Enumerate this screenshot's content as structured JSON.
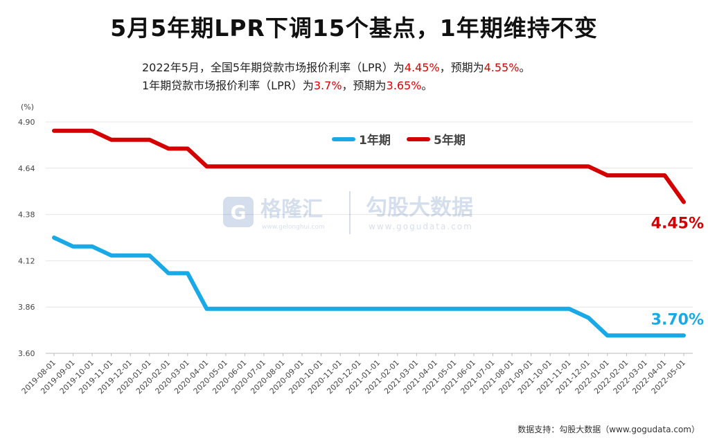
{
  "title": "5月5年期LPR下调15个基点，1年期维持不变",
  "subtitle_line1": {
    "p1": "2022年5月，全国5年期贷款市场报价利率（LPR）为",
    "v1": "4.45%",
    "p2": "，预期为",
    "v2": "4.55%",
    "p3": "。"
  },
  "subtitle_line2": {
    "p1": "1年期贷款市场报价利率（LPR）为",
    "v1": "3.7%",
    "p2": "，预期为",
    "v2": "3.65%",
    "p3": "。"
  },
  "watermark": {
    "brand1": "格隆汇",
    "url1": "www.gelonghui.com",
    "brand2": "勾股大数据",
    "url2": "www.gogudata.com"
  },
  "footer": "数据支持：勾股大数据（www.gogudata.com）",
  "colors": {
    "one_year": "#19a9e6",
    "five_year": "#d40000",
    "red_text": "#e00000"
  },
  "chart_data": {
    "type": "line",
    "ylabel": "(%)",
    "ylim": [
      3.6,
      4.9
    ],
    "yticks": [
      3.6,
      3.86,
      4.12,
      4.38,
      4.64,
      4.9
    ],
    "ytick_labels": [
      "3.60",
      "3.86",
      "4.12",
      "4.38",
      "4.64",
      "4.90"
    ],
    "x": [
      "2019-08-01",
      "2019-09-01",
      "2019-10-01",
      "2019-11-01",
      "2019-12-01",
      "2020-01-01",
      "2020-02-01",
      "2020-03-01",
      "2020-04-01",
      "2020-05-01",
      "2020-06-01",
      "2020-07-01",
      "2020-08-01",
      "2020-09-01",
      "2020-10-01",
      "2020-11-01",
      "2020-12-01",
      "2021-01-01",
      "2021-02-01",
      "2021-03-01",
      "2021-04-01",
      "2021-05-01",
      "2021-06-01",
      "2021-07-01",
      "2021-08-01",
      "2021-09-01",
      "2021-10-01",
      "2021-11-01",
      "2021-12-01",
      "2022-01-01",
      "2022-02-01",
      "2022-03-01",
      "2022-04-01",
      "2022-05-01"
    ],
    "series": [
      {
        "name": "1年期",
        "values": [
          4.25,
          4.2,
          4.2,
          4.15,
          4.15,
          4.15,
          4.05,
          4.05,
          3.85,
          3.85,
          3.85,
          3.85,
          3.85,
          3.85,
          3.85,
          3.85,
          3.85,
          3.85,
          3.85,
          3.85,
          3.85,
          3.85,
          3.85,
          3.85,
          3.85,
          3.85,
          3.85,
          3.85,
          3.8,
          3.7,
          3.7,
          3.7,
          3.7,
          3.7
        ],
        "end_label": "3.70%"
      },
      {
        "name": "5年期",
        "values": [
          4.85,
          4.85,
          4.85,
          4.8,
          4.8,
          4.8,
          4.75,
          4.75,
          4.65,
          4.65,
          4.65,
          4.65,
          4.65,
          4.65,
          4.65,
          4.65,
          4.65,
          4.65,
          4.65,
          4.65,
          4.65,
          4.65,
          4.65,
          4.65,
          4.65,
          4.65,
          4.65,
          4.65,
          4.65,
          4.6,
          4.6,
          4.6,
          4.6,
          4.45
        ],
        "end_label": "4.45%"
      }
    ],
    "grid": true,
    "legend": "top-center"
  }
}
